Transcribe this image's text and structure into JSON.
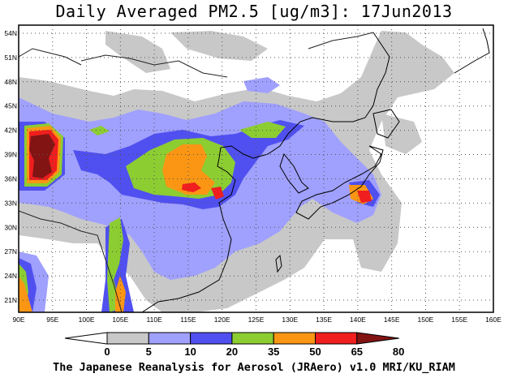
{
  "title": "Daily Averaged PM2.5 [ug/m3]: 17Jun2013",
  "footer": "The Japanese Reanalysis for Aerosol (JRAero) v1.0 MRI/KU_RIAM",
  "map": {
    "lon_range": [
      90,
      160
    ],
    "lat_range": [
      19.5,
      55
    ],
    "lon_ticks": [
      "90E",
      "95E",
      "100E",
      "105E",
      "110E",
      "115E",
      "120E",
      "125E",
      "130E",
      "135E",
      "140E",
      "145E",
      "150E",
      "155E",
      "160E"
    ],
    "lat_ticks": [
      "21N",
      "24N",
      "27N",
      "30N",
      "33N",
      "36N",
      "39N",
      "42N",
      "45N",
      "48N",
      "51N",
      "54N"
    ],
    "grid": true
  },
  "colorbar": {
    "levels": [
      "0",
      "5",
      "10",
      "20",
      "35",
      "50",
      "65",
      "80"
    ],
    "colors": [
      "#ffffff",
      "#c8c8c8",
      "#a0a0ff",
      "#5050f0",
      "#8ccd32",
      "#fa9614",
      "#f01e1e",
      "#821414"
    ]
  }
}
